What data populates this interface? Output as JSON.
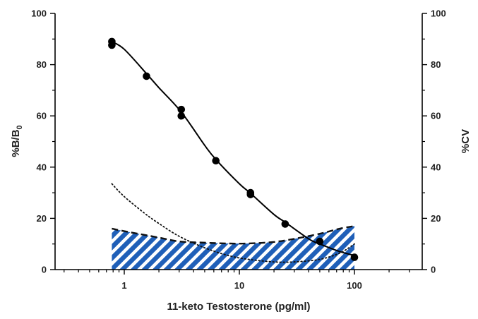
{
  "chart_data": {
    "type": "line",
    "xlabel": "11-keto Testosterone (pg/ml)",
    "ylabel_left": "%B/B",
    "ylabel_left_subscript": "0",
    "ylabel_right": "%CV",
    "x_scale": "log",
    "xlim": [
      0.3,
      300
    ],
    "ylim_left": [
      0,
      100
    ],
    "ylim_right": [
      0,
      100
    ],
    "x_ticks": [
      1,
      10,
      100
    ],
    "x_tick_labels": [
      "1",
      "10",
      "100"
    ],
    "y_ticks": [
      0,
      20,
      40,
      60,
      80,
      100
    ],
    "y_tick_labels": [
      "0",
      "20",
      "40",
      "60",
      "80",
      "100"
    ],
    "grid": false,
    "series": [
      {
        "style": "points",
        "axis": "left",
        "color": "#000000",
        "x": [
          0.78,
          0.78,
          1.56,
          3.13,
          3.13,
          6.25,
          12.5,
          12.5,
          25,
          50,
          100
        ],
        "y": [
          89.0,
          87.6,
          75.5,
          62.5,
          60.0,
          42.5,
          30.0,
          29.3,
          17.8,
          11.0,
          4.8
        ]
      },
      {
        "style": "solid-line",
        "axis": "left",
        "color": "#000000",
        "x": [
          0.78,
          1,
          1.56,
          2,
          3.13,
          5,
          6.25,
          10,
          12.5,
          20,
          25,
          40,
          50,
          75,
          100
        ],
        "y": [
          89.0,
          86.0,
          76.5,
          71.0,
          61.5,
          48.5,
          43.0,
          33.5,
          29.8,
          21.5,
          18.5,
          12.0,
          10.0,
          7.0,
          5.5
        ]
      },
      {
        "style": "dotted-line",
        "axis": "right",
        "color": "#000000",
        "x": [
          0.78,
          1,
          1.5,
          2,
          3,
          5,
          8,
          12,
          20,
          30,
          50,
          75,
          100
        ],
        "y": [
          33.5,
          28.5,
          22.0,
          18.0,
          13.0,
          8.5,
          5.5,
          4.0,
          3.0,
          3.0,
          4.0,
          6.5,
          10.0
        ]
      },
      {
        "style": "dashed-area",
        "axis": "right",
        "color": "#1f5fb8",
        "x": [
          0.78,
          1,
          2,
          3,
          5,
          8,
          12,
          20,
          30,
          50,
          75,
          100
        ],
        "y": [
          16.0,
          15.0,
          12.5,
          11.0,
          10.5,
          10.2,
          10.2,
          10.8,
          12.0,
          14.0,
          16.0,
          17.0
        ]
      }
    ]
  }
}
